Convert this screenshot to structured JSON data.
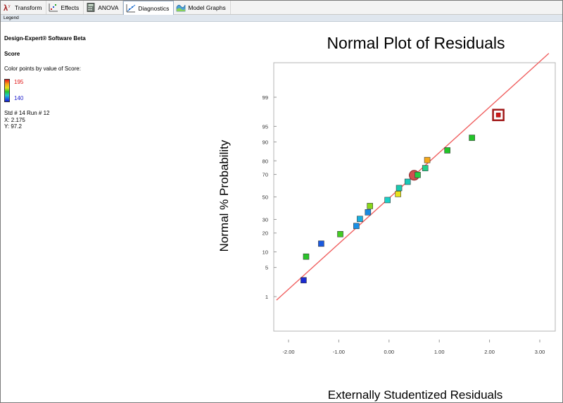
{
  "toolbar": {
    "tabs": [
      {
        "label": "Transform",
        "icon": "lambda-icon"
      },
      {
        "label": "Effects",
        "icon": "effects-icon"
      },
      {
        "label": "ANOVA",
        "icon": "calculator-icon"
      },
      {
        "label": "Diagnostics",
        "icon": "diagnostics-icon",
        "active": true
      },
      {
        "label": "Model Graphs",
        "icon": "model-graphs-icon"
      }
    ]
  },
  "legend_bar": {
    "label": "Legend"
  },
  "legend": {
    "software": "Design-Expert® Software Beta",
    "response": "Score",
    "color_caption": "Color points by value of Score:",
    "high_value": "195",
    "low_value": "140",
    "selected_point": "Std # 14 Run # 12",
    "x_readout": "X: 2.175",
    "y_readout": "Y: 97.2"
  },
  "colors": {
    "high": "#e01818",
    "low": "#1a1acc",
    "fit_line": "#f06060"
  },
  "chart_data": {
    "type": "scatter",
    "title": "Normal Plot of Residuals",
    "xlabel": "Externally Studentized Residuals",
    "ylabel": "Normal % Probability",
    "xlim": [
      -2.0,
      3.0
    ],
    "x_ticks": [
      "-2.00",
      "-1.00",
      "0.00",
      "1.00",
      "2.00",
      "3.00"
    ],
    "x_tick_values": [
      -2,
      -1,
      0,
      1,
      2,
      3
    ],
    "y_ticks": [
      "1",
      "5",
      "10",
      "20",
      "30",
      "50",
      "70",
      "80",
      "90",
      "95",
      "99"
    ],
    "y_tick_values": [
      1,
      5,
      10,
      20,
      30,
      50,
      70,
      80,
      90,
      95,
      99
    ],
    "y_scale": "normal-probability",
    "fit_line": {
      "x": [
        -2.24,
        3.18
      ],
      "y": [
        0.8,
        99.96
      ]
    },
    "points": [
      {
        "x": -1.7,
        "y": 2.6,
        "color": "#1a2ad2"
      },
      {
        "x": -1.65,
        "y": 8.2,
        "color": "#2ac42a"
      },
      {
        "x": -1.35,
        "y": 13.8,
        "color": "#1a5ae0"
      },
      {
        "x": -0.97,
        "y": 19.3,
        "color": "#44cc22"
      },
      {
        "x": -0.65,
        "y": 24.9,
        "color": "#1a90e6"
      },
      {
        "x": -0.58,
        "y": 30.4,
        "color": "#1ab0e0"
      },
      {
        "x": -0.42,
        "y": 36.0,
        "color": "#1a8ae0"
      },
      {
        "x": -0.38,
        "y": 41.6,
        "color": "#88d81a"
      },
      {
        "x": -0.03,
        "y": 47.1,
        "color": "#1ad0c8"
      },
      {
        "x": 0.18,
        "y": 52.7,
        "color": "#e8e21a"
      },
      {
        "x": 0.2,
        "y": 58.2,
        "color": "#1acab0"
      },
      {
        "x": 0.37,
        "y": 63.8,
        "color": "#1ac8b8"
      },
      {
        "x": 0.5,
        "y": 69.3,
        "color": "#d05050",
        "highlight": "circle"
      },
      {
        "x": 0.57,
        "y": 69.6,
        "color": "#22cc44"
      },
      {
        "x": 0.72,
        "y": 74.9,
        "color": "#22d088"
      },
      {
        "x": 0.76,
        "y": 80.5,
        "color": "#f5a81a"
      },
      {
        "x": 1.16,
        "y": 86.1,
        "color": "#22c428"
      },
      {
        "x": 1.65,
        "y": 91.6,
        "color": "#22c428"
      },
      {
        "x": 2.175,
        "y": 97.2,
        "color": "#d01818",
        "highlight": "square"
      }
    ]
  }
}
